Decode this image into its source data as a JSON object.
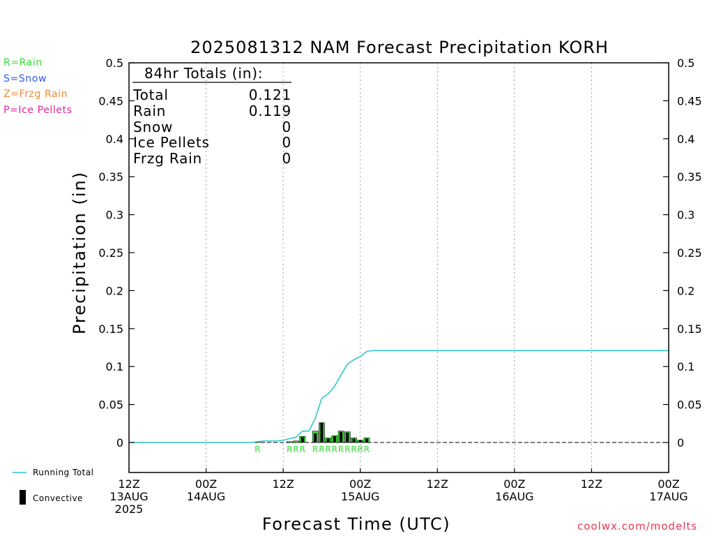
{
  "colors": {
    "rain": "#33dd33",
    "snow": "#3355ee",
    "frzg_rain": "#ee8833",
    "ice_pellets": "#dd2299",
    "running_total": "#22c4cc",
    "convective": "#000000",
    "credit": "#e8384f"
  },
  "legend": {
    "rain": "R=Rain",
    "snow": "S=Snow",
    "frzg_rain": "Z=Frzg Rain",
    "ice_pellets": "P=Ice Pellets"
  },
  "bottom_legend": {
    "running_total": "Running Total",
    "convective": "Convective"
  },
  "totals_box": {
    "heading": "84hr Totals (in):",
    "rows": [
      {
        "label": "Total",
        "value": "0.121"
      },
      {
        "label": "Rain",
        "value": "0.119"
      },
      {
        "label": "Snow",
        "value": "0"
      },
      {
        "label": "Ice Pellets",
        "value": "0"
      },
      {
        "label": "Frzg Rain",
        "value": "0"
      }
    ]
  },
  "credit": "coolwx.com/modelts",
  "chart_data": {
    "type": "bar",
    "title": "2025081312 NAM Forecast Precipitation KORH",
    "xlabel": "Forecast Time (UTC)",
    "ylabel": "Precipitation (in)",
    "ylim": [
      -0.04,
      0.5
    ],
    "xlim_hours": [
      0,
      84
    ],
    "yticks": [
      "0",
      "0.05",
      "0.1",
      "0.15",
      "0.2",
      "0.25",
      "0.3",
      "0.35",
      "0.4",
      "0.45",
      "0.5"
    ],
    "xticks": [
      {
        "hour": 0,
        "lines": [
          "12Z",
          "13AUG",
          "2025"
        ]
      },
      {
        "hour": 12,
        "lines": [
          "00Z",
          "14AUG"
        ]
      },
      {
        "hour": 24,
        "lines": [
          "12Z"
        ]
      },
      {
        "hour": 36,
        "lines": [
          "00Z",
          "15AUG"
        ]
      },
      {
        "hour": 48,
        "lines": [
          "12Z"
        ]
      },
      {
        "hour": 60,
        "lines": [
          "00Z",
          "16AUG"
        ]
      },
      {
        "hour": 72,
        "lines": [
          "12Z"
        ]
      },
      {
        "hour": 84,
        "lines": [
          "00Z",
          "17AUG"
        ]
      }
    ],
    "grid": "vertical dotted",
    "series": [
      {
        "name": "Running Total",
        "x": [
          0,
          3,
          6,
          9,
          12,
          15,
          18,
          19,
          20,
          21,
          22,
          23,
          24,
          25,
          26,
          27,
          28,
          29,
          30,
          31,
          32,
          33,
          34,
          35,
          36,
          37,
          38,
          39,
          40,
          41,
          42,
          43,
          44,
          45,
          46,
          47,
          48,
          51,
          54,
          57,
          60,
          63,
          66,
          69,
          72,
          75,
          78,
          81,
          84
        ],
        "values": [
          0,
          0,
          0,
          0,
          0,
          0,
          0,
          0,
          0.001,
          0.002,
          0.002,
          0.002,
          0.003,
          0.005,
          0.007,
          0.015,
          0.015,
          0.032,
          0.058,
          0.064,
          0.074,
          0.089,
          0.103,
          0.109,
          0.113,
          0.12,
          0.121,
          0.121,
          0.121,
          0.121,
          0.121,
          0.121,
          0.121,
          0.121,
          0.121,
          0.121,
          0.121,
          0.121,
          0.121,
          0.121,
          0.121,
          0.121,
          0.121,
          0.121,
          0.121,
          0.121,
          0.121,
          0.121,
          0.121
        ]
      },
      {
        "name": "Rain",
        "type": "bar",
        "x": [
          20,
          25,
          26,
          27,
          29,
          30,
          31,
          32,
          33,
          34,
          35,
          36,
          37
        ],
        "values": [
          0.001,
          0.001,
          0.002,
          0.008,
          0.015,
          0.026,
          0.006,
          0.009,
          0.015,
          0.014,
          0.006,
          0.003,
          0.006
        ],
        "ptype": [
          "R",
          "R",
          "R",
          "R",
          "R",
          "R",
          "R",
          "R",
          "R",
          "R",
          "R",
          "R",
          "R"
        ]
      },
      {
        "name": "Convective",
        "type": "bar",
        "x": [
          27,
          29,
          30,
          31,
          32,
          33,
          34,
          35,
          36,
          37
        ],
        "values": [
          0.007,
          0.012,
          0.026,
          0.005,
          0.008,
          0.014,
          0.013,
          0.005,
          0.003,
          0.005
        ]
      }
    ]
  }
}
